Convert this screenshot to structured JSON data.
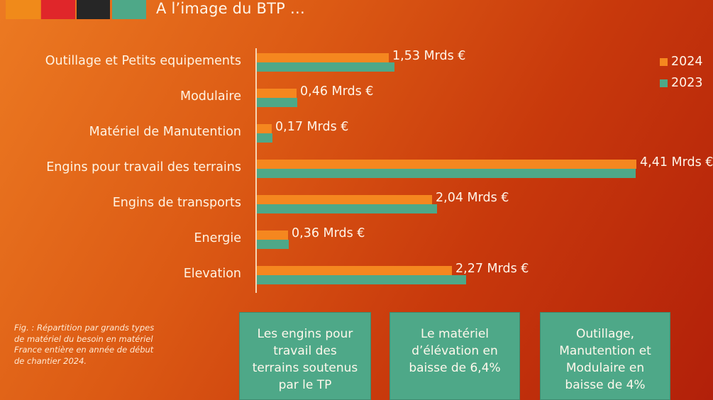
{
  "header": {
    "title": "A l’image du BTP …",
    "color_squares": [
      "#f08a1a",
      "#e0262a",
      "#262626",
      "#4ea888"
    ]
  },
  "legend": [
    {
      "label": "2024",
      "color": "#f5871f"
    },
    {
      "label": "2023",
      "color": "#4ea888"
    }
  ],
  "chart_data": {
    "type": "bar",
    "orientation": "horizontal",
    "title": "",
    "xlabel": "",
    "ylabel": "",
    "categories": [
      "Outillage et Petits equipements",
      "Modulaire",
      "Matériel de Manutention",
      "Engins pour travail des terrains",
      "Engins de transports",
      "Energie",
      "Elevation"
    ],
    "series": [
      {
        "name": "2024",
        "color": "#f5871f",
        "values": [
          1.53,
          0.46,
          0.17,
          4.41,
          2.04,
          0.36,
          2.27
        ]
      },
      {
        "name": "2023",
        "color": "#4ea888",
        "values": [
          1.6,
          0.47,
          0.18,
          4.4,
          2.09,
          0.37,
          2.43
        ]
      }
    ],
    "data_labels": [
      "1,53 Mrds €",
      "0,46 Mrds €",
      "0,17 Mrds €",
      "4,41 Mrds €",
      "2,04 Mrds €",
      "0,36 Mrds €",
      "2,27 Mrds €"
    ],
    "unit": "Mrds €",
    "xlim": [
      0,
      4.5
    ],
    "grid": false,
    "legend_position": "top-right"
  },
  "caption": "Fig. : Répartition par grands types de matériel du besoin en matériel France entière en année de début de chantier 2024.",
  "boxes": [
    {
      "text": "Les engins pour travail des terrains soutenus par le TP"
    },
    {
      "text": "Le matériel d’élévation en baisse de 6,4%"
    },
    {
      "text": "Outillage, Manutention et Modulaire en baisse de 4%"
    }
  ]
}
